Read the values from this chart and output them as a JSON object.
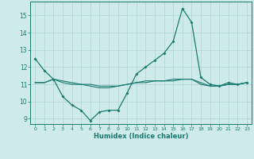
{
  "xlabel": "Humidex (Indice chaleur)",
  "ylabel": "",
  "background_color": "#ceeaea",
  "line_color": "#1a7a6e",
  "grid_color": "#b0d4d4",
  "xlim": [
    -0.5,
    23.5
  ],
  "ylim": [
    8.7,
    15.8
  ],
  "yticks": [
    9,
    10,
    11,
    12,
    13,
    14,
    15
  ],
  "xticks": [
    0,
    1,
    2,
    3,
    4,
    5,
    6,
    7,
    8,
    9,
    10,
    11,
    12,
    13,
    14,
    15,
    16,
    17,
    18,
    19,
    20,
    21,
    22,
    23
  ],
  "line1_x": [
    0,
    1,
    2,
    3,
    4,
    5,
    6,
    7,
    8,
    9,
    10,
    11,
    12,
    13,
    14,
    15,
    16,
    17,
    18,
    19,
    20,
    21,
    22,
    23
  ],
  "line1_y": [
    12.5,
    11.8,
    11.3,
    10.3,
    9.8,
    9.5,
    8.9,
    9.4,
    9.5,
    9.5,
    10.5,
    11.6,
    12.0,
    12.4,
    12.8,
    13.5,
    15.4,
    14.6,
    11.4,
    11.0,
    10.9,
    11.1,
    11.0,
    11.1
  ],
  "line2_x": [
    0,
    1,
    2,
    3,
    4,
    5,
    6,
    7,
    8,
    9,
    10,
    11,
    12,
    13,
    14,
    15,
    16,
    17,
    18,
    19,
    20,
    21,
    22,
    23
  ],
  "line2_y": [
    11.1,
    11.1,
    11.3,
    11.1,
    11.0,
    11.0,
    10.9,
    10.8,
    10.8,
    10.9,
    11.0,
    11.1,
    11.1,
    11.2,
    11.2,
    11.2,
    11.3,
    11.3,
    11.0,
    10.9,
    10.9,
    11.0,
    11.0,
    11.1
  ],
  "line3_x": [
    0,
    1,
    2,
    3,
    4,
    5,
    6,
    7,
    8,
    9,
    10,
    11,
    12,
    13,
    14,
    15,
    16,
    17,
    18,
    19,
    20,
    21,
    22,
    23
  ],
  "line3_y": [
    11.1,
    11.1,
    11.3,
    11.2,
    11.1,
    11.0,
    11.0,
    10.9,
    10.9,
    10.9,
    11.0,
    11.1,
    11.2,
    11.2,
    11.2,
    11.3,
    11.3,
    11.3,
    11.1,
    10.9,
    10.9,
    11.0,
    11.0,
    11.1
  ]
}
